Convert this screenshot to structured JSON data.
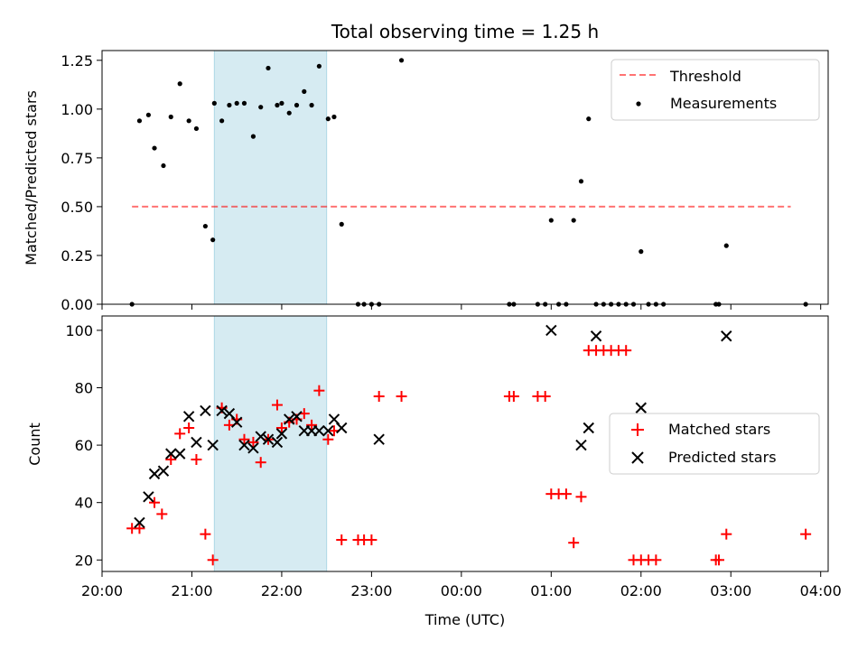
{
  "figure": {
    "title": "Total observing time = 1.25 h"
  },
  "colors": {
    "shade": "#add8e6",
    "threshold": "#ff0000",
    "measurement": "#000000",
    "matched": "#ff0000",
    "predicted": "#000000"
  },
  "chart_data": [
    {
      "type": "scatter",
      "name": "top",
      "ylabel": "Matched/Predicted stars",
      "xlabel": "",
      "xlim": [
        "20:00",
        "04:05"
      ],
      "ylim": [
        0,
        1.3
      ],
      "yticks": [
        "0.00",
        "0.25",
        "0.50",
        "0.75",
        "1.00",
        "1.25"
      ],
      "ytick_values": [
        0,
        0.25,
        0.5,
        0.75,
        1.0,
        1.25
      ],
      "legend": {
        "position": "top-right",
        "entries": [
          "Threshold",
          "Measurements"
        ]
      },
      "shaded_interval": [
        "21:15",
        "22:30"
      ],
      "threshold": {
        "label": "Threshold",
        "value": 0.5,
        "x": [
          "20:20",
          "03:40"
        ],
        "style": "dashed"
      },
      "series": [
        {
          "name": "Measurements",
          "marker": "dot",
          "x": [
            "20:20",
            "20:25",
            "20:31",
            "20:35",
            "20:41",
            "20:46",
            "20:52",
            "20:58",
            "21:03",
            "21:09",
            "21:14",
            "21:15",
            "21:20",
            "21:25",
            "21:30",
            "21:35",
            "21:41",
            "21:46",
            "21:51",
            "21:57",
            "22:00",
            "22:05",
            "22:10",
            "22:15",
            "22:20",
            "22:25",
            "22:31",
            "22:35",
            "22:40",
            "22:51",
            "22:55",
            "23:00",
            "23:05",
            "23:20",
            "00:32",
            "00:35",
            "00:51",
            "00:56",
            "01:00",
            "01:05",
            "01:10",
            "01:15",
            "01:20",
            "01:25",
            "01:30",
            "01:35",
            "01:40",
            "01:45",
            "01:50",
            "01:55",
            "02:00",
            "02:05",
            "02:10",
            "02:15",
            "02:50",
            "02:52",
            "02:57",
            "03:50"
          ],
          "y": [
            0.0,
            0.94,
            0.97,
            0.8,
            0.71,
            0.96,
            1.13,
            0.94,
            0.9,
            0.4,
            0.33,
            1.03,
            0.94,
            1.02,
            1.03,
            1.03,
            0.86,
            1.01,
            1.21,
            1.02,
            1.03,
            0.98,
            1.02,
            1.09,
            1.02,
            1.22,
            0.95,
            0.96,
            0.41,
            0.0,
            0.0,
            0.0,
            0.0,
            1.25,
            0.0,
            0.0,
            0.0,
            0.0,
            0.43,
            0.0,
            0.0,
            0.43,
            0.63,
            0.95,
            0.0,
            0.0,
            0.0,
            0.0,
            0.0,
            0.0,
            0.27,
            0.0,
            0.0,
            0.0,
            0.0,
            0.0,
            0.3,
            0.0
          ]
        }
      ]
    },
    {
      "type": "scatter",
      "name": "bottom",
      "ylabel": "Count",
      "xlabel": "Time (UTC)",
      "xlim": [
        "20:00",
        "04:05"
      ],
      "ylim": [
        16,
        105
      ],
      "yticks": [
        "20",
        "40",
        "60",
        "80",
        "100"
      ],
      "ytick_values": [
        20,
        40,
        60,
        80,
        100
      ],
      "xticks": [
        "20:00",
        "21:00",
        "22:00",
        "23:00",
        "00:00",
        "01:00",
        "02:00",
        "03:00",
        "04:00"
      ],
      "legend": {
        "position": "center-right",
        "entries": [
          "Matched stars",
          "Predicted stars"
        ]
      },
      "shaded_interval": [
        "21:15",
        "22:30"
      ],
      "series": [
        {
          "name": "Matched stars",
          "marker": "plus",
          "x": [
            "20:20",
            "20:25",
            "20:35",
            "20:40",
            "20:46",
            "20:52",
            "20:58",
            "21:03",
            "21:09",
            "21:14",
            "21:20",
            "21:25",
            "21:30",
            "21:35",
            "21:41",
            "21:46",
            "21:51",
            "21:57",
            "22:00",
            "22:05",
            "22:10",
            "22:15",
            "22:20",
            "22:25",
            "22:31",
            "22:35",
            "22:40",
            "22:51",
            "22:55",
            "23:00",
            "23:05",
            "23:20",
            "00:32",
            "00:35",
            "00:51",
            "00:56",
            "01:00",
            "01:05",
            "01:10",
            "01:15",
            "01:20",
            "01:25",
            "01:30",
            "01:35",
            "01:40",
            "01:45",
            "01:50",
            "01:55",
            "02:00",
            "02:05",
            "02:10",
            "02:50",
            "02:52",
            "02:57",
            "03:50"
          ],
          "y": [
            31,
            31,
            40,
            36,
            55,
            64,
            66,
            55,
            29,
            20,
            73,
            67,
            69,
            62,
            61,
            54,
            62,
            74,
            66,
            68,
            69,
            71,
            67,
            79,
            62,
            65,
            27,
            27,
            27,
            27,
            77,
            77,
            77,
            77,
            77,
            77,
            43,
            43,
            43,
            26,
            42,
            93,
            93,
            93,
            93,
            93,
            93,
            20,
            20,
            20,
            20,
            20,
            20,
            29,
            29
          ]
        },
        {
          "name": "Predicted stars",
          "marker": "x",
          "x": [
            "20:25",
            "20:31",
            "20:35",
            "20:41",
            "20:46",
            "20:52",
            "20:58",
            "21:03",
            "21:09",
            "21:14",
            "21:20",
            "21:25",
            "21:30",
            "21:35",
            "21:41",
            "21:46",
            "21:51",
            "21:57",
            "22:00",
            "22:05",
            "22:10",
            "22:15",
            "22:20",
            "22:25",
            "22:31",
            "22:35",
            "22:40",
            "23:05",
            "01:00",
            "01:20",
            "01:25",
            "01:30",
            "02:00",
            "02:57"
          ],
          "y": [
            33,
            42,
            50,
            51,
            57,
            57,
            70,
            61,
            72,
            60,
            72,
            71,
            68,
            60,
            59,
            63,
            62,
            61,
            64,
            69,
            70,
            65,
            65,
            65,
            65,
            69,
            66,
            62,
            100,
            60,
            66,
            98,
            73,
            98
          ]
        }
      ]
    }
  ]
}
